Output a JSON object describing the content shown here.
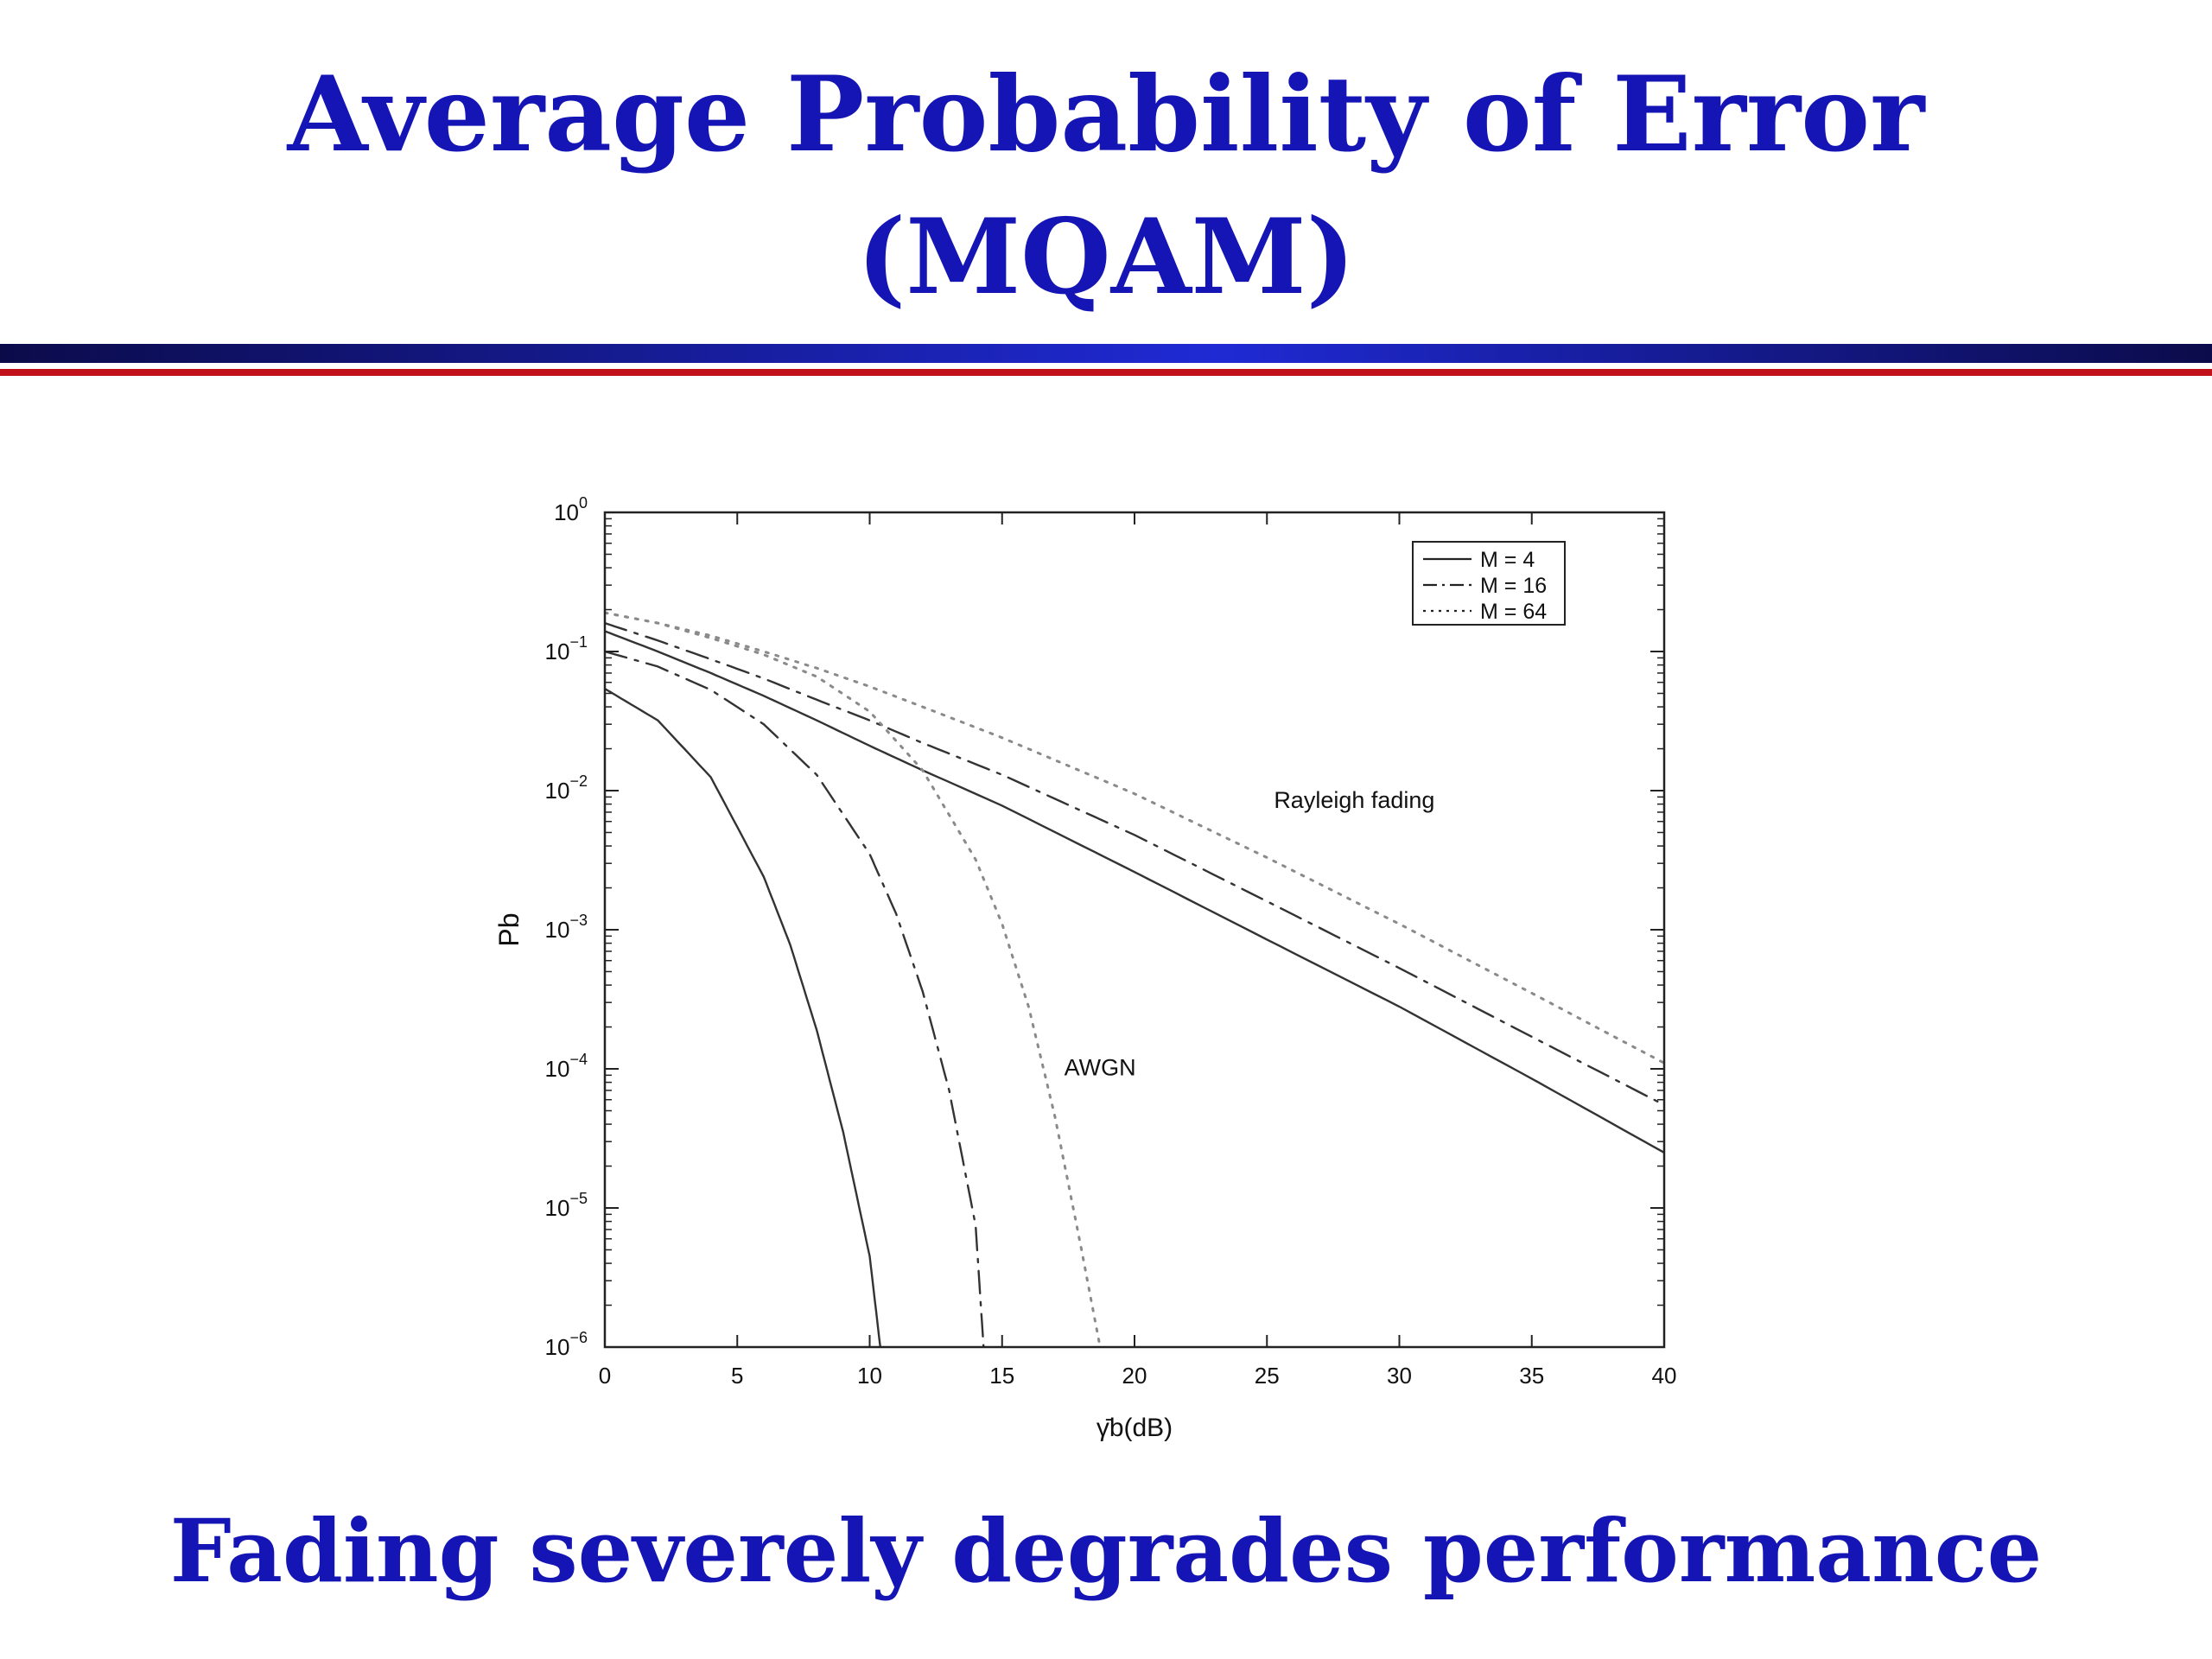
{
  "slide": {
    "title_line1": "Average Probability of Error",
    "title_line2": "(MQAM)",
    "caption": "Fading severely degrades performance",
    "title_color": "#1515b5",
    "rule_colors": [
      "#0b0b4a",
      "#1f2ad4",
      "#c0101a"
    ]
  },
  "chart_data": {
    "type": "line",
    "title": "",
    "xlabel": "γ̄b(dB)",
    "ylabel": "Pb",
    "xlim": [
      0,
      40
    ],
    "ylim": [
      1e-06,
      1
    ],
    "yscale": "log",
    "grid": false,
    "legend_position": "top-right",
    "xticks": [
      0,
      5,
      10,
      15,
      20,
      25,
      30,
      35,
      40
    ],
    "yticks": [
      {
        "base": "10",
        "exp": "0"
      },
      {
        "base": "10",
        "exp": "−1"
      },
      {
        "base": "10",
        "exp": "−2"
      },
      {
        "base": "10",
        "exp": "−3"
      },
      {
        "base": "10",
        "exp": "−4"
      },
      {
        "base": "10",
        "exp": "−5"
      },
      {
        "base": "10",
        "exp": "−6"
      }
    ],
    "annotations": [
      {
        "text": "Rayleigh fading",
        "x": 28.3,
        "y": 0.0075
      },
      {
        "text": "AWGN",
        "x": 18.7,
        "y": 9e-05
      }
    ],
    "legend": [
      {
        "label": "M = 4",
        "style": "solid"
      },
      {
        "label": "M = 16",
        "style": "dashdot"
      },
      {
        "label": "M = 64",
        "style": "dotted"
      }
    ],
    "series": [
      {
        "label": "M = 4",
        "group": "Rayleigh fading",
        "style": "solid",
        "x": [
          0,
          2,
          4,
          6,
          8,
          10,
          12,
          15,
          20,
          25,
          30,
          35,
          40
        ],
        "y": [
          0.14,
          0.1,
          0.07,
          0.048,
          0.032,
          0.021,
          0.014,
          0.0078,
          0.0026,
          0.00085,
          0.00028,
          8.5e-05,
          2.5e-05
        ]
      },
      {
        "label": "M = 16",
        "group": "Rayleigh fading",
        "style": "dashdot",
        "x": [
          0,
          2,
          4,
          6,
          8,
          10,
          12,
          15,
          20,
          25,
          30,
          35,
          40
        ],
        "y": [
          0.16,
          0.12,
          0.088,
          0.064,
          0.045,
          0.032,
          0.022,
          0.013,
          0.0048,
          0.0016,
          0.00053,
          0.00017,
          5.5e-05
        ]
      },
      {
        "label": "M = 64",
        "group": "Rayleigh fading",
        "style": "dotted",
        "x": [
          0,
          2,
          4,
          6,
          8,
          10,
          12,
          15,
          20,
          25,
          30,
          35,
          40
        ],
        "y": [
          0.19,
          0.16,
          0.13,
          0.1,
          0.076,
          0.056,
          0.04,
          0.024,
          0.0095,
          0.0033,
          0.0011,
          0.00035,
          0.00011
        ]
      },
      {
        "label": "M = 4",
        "group": "AWGN",
        "style": "solid",
        "x": [
          0,
          2,
          4,
          6,
          7,
          8,
          9,
          10,
          10.4
        ],
        "y": [
          0.054,
          0.032,
          0.0125,
          0.0024,
          0.00078,
          0.00019,
          3.5e-05,
          4.5e-06,
          1e-06
        ]
      },
      {
        "label": "M = 16",
        "group": "AWGN",
        "style": "dashdot",
        "x": [
          0,
          2,
          4,
          6,
          8,
          10,
          11,
          12,
          13,
          14,
          14.3
        ],
        "y": [
          0.1,
          0.078,
          0.053,
          0.03,
          0.013,
          0.0035,
          0.0013,
          0.00036,
          7e-05,
          7.5e-06,
          1e-06
        ]
      },
      {
        "label": "M = 64",
        "group": "AWGN",
        "style": "dotted",
        "x": [
          0,
          2,
          4,
          6,
          8,
          10,
          12,
          14,
          15,
          16,
          17,
          18,
          18.7
        ],
        "y": [
          0.19,
          0.16,
          0.125,
          0.095,
          0.066,
          0.037,
          0.014,
          0.0032,
          0.0011,
          0.00028,
          4.5e-05,
          5e-06,
          1e-06
        ]
      }
    ]
  }
}
